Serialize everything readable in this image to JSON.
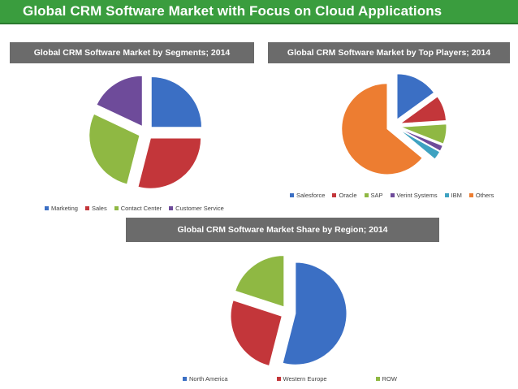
{
  "banner": {
    "title": "Global CRM Software Market with Focus on Cloud Applications"
  },
  "colors": {
    "banner": "#3a9d3e",
    "header": "#6b6b6b",
    "blue": "#3b6fc4",
    "red": "#c3363a",
    "green": "#8fb843",
    "purple": "#6e4b9a",
    "teal": "#3ea2c1",
    "orange": "#ed7d31"
  },
  "chart_data": [
    {
      "type": "pie",
      "title": "Global CRM Software Market by Segments; 2014",
      "labels": [
        "Marketing",
        "Sales",
        "Contact Center",
        "Customer Service"
      ],
      "values": [
        25,
        29,
        28,
        18
      ],
      "colors": [
        "#3b6fc4",
        "#c3363a",
        "#8fb843",
        "#6e4b9a"
      ],
      "exploded": true,
      "legend_position": "bottom"
    },
    {
      "type": "pie",
      "title": "Global CRM Software Market by Top Players; 2014",
      "labels": [
        "Salesforce",
        "Oracle",
        "SAP",
        "Verint Systems",
        "IBM",
        "Others"
      ],
      "values": [
        15,
        9,
        7,
        2,
        3,
        64
      ],
      "colors": [
        "#3b6fc4",
        "#c3363a",
        "#8fb843",
        "#6e4b9a",
        "#3ea2c1",
        "#ed7d31"
      ],
      "exploded": true,
      "legend_position": "bottom"
    },
    {
      "type": "pie",
      "title": "Global CRM Software Market Share by Region; 2014",
      "labels": [
        "North America",
        "Western Europe",
        "ROW"
      ],
      "values": [
        54,
        26,
        20
      ],
      "colors": [
        "#3b6fc4",
        "#c3363a",
        "#8fb843"
      ],
      "exploded": true,
      "legend_position": "bottom"
    }
  ]
}
